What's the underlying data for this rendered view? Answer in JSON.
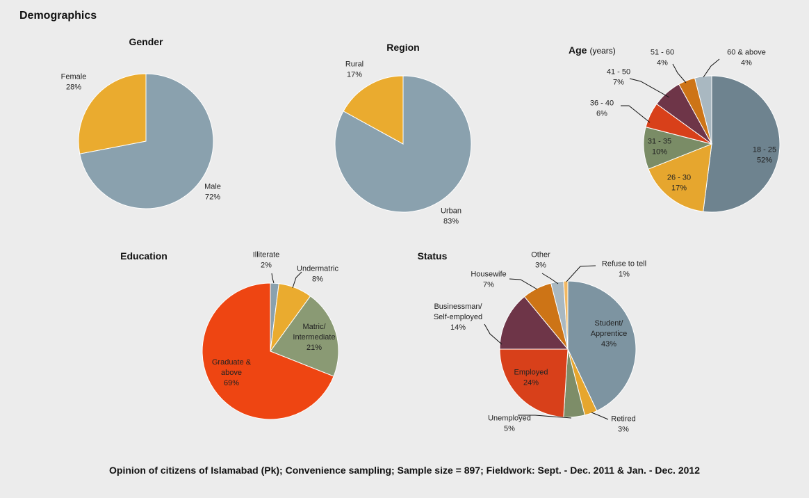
{
  "title": "Demographics",
  "footer": "Opinion of citizens of Islamabad (Pk); Convenience sampling; Sample size = 897; Fieldwork: Sept. - Dec. 2011 & Jan. - Dec. 2012",
  "chart_data": [
    {
      "type": "pie",
      "title": "Gender",
      "subtitle": "",
      "slices": [
        {
          "label": [
            "Male"
          ],
          "value": 72,
          "pct": "72%",
          "color": "#8aa1ae"
        },
        {
          "label": [
            "Female"
          ],
          "value": 28,
          "pct": "28%",
          "color": "#eaab2f"
        }
      ]
    },
    {
      "type": "pie",
      "title": "Region",
      "subtitle": "",
      "slices": [
        {
          "label": [
            "Urban"
          ],
          "value": 83,
          "pct": "83%",
          "color": "#8aa1ae"
        },
        {
          "label": [
            "Rural"
          ],
          "value": 17,
          "pct": "17%",
          "color": "#eaab2f"
        }
      ]
    },
    {
      "type": "pie",
      "title": "Age",
      "subtitle": "(years)",
      "slices": [
        {
          "label": [
            "18 - 25"
          ],
          "value": 52,
          "pct": "52%",
          "color": "#6e838f"
        },
        {
          "label": [
            "26 - 30"
          ],
          "value": 17,
          "pct": "17%",
          "color": "#e6a62e"
        },
        {
          "label": [
            "31 - 35"
          ],
          "value": 10,
          "pct": "10%",
          "color": "#7a8c66"
        },
        {
          "label": [
            "36 - 40"
          ],
          "value": 6,
          "pct": "6%",
          "color": "#d8401a"
        },
        {
          "label": [
            "41 - 50"
          ],
          "value": 7,
          "pct": "7%",
          "color": "#6e3548"
        },
        {
          "label": [
            "51 - 60"
          ],
          "value": 4,
          "pct": "4%",
          "color": "#cd7416"
        },
        {
          "label": [
            "60 & above"
          ],
          "value": 4,
          "pct": "4%",
          "color": "#a9b8c1"
        }
      ]
    },
    {
      "type": "pie",
      "title": "Education",
      "subtitle": "",
      "slices": [
        {
          "label": [
            "Illiterate"
          ],
          "value": 2,
          "pct": "2%",
          "color": "#8aa1ae"
        },
        {
          "label": [
            "Undermatric"
          ],
          "value": 8,
          "pct": "8%",
          "color": "#eaab2f"
        },
        {
          "label": [
            "Matric/",
            "Intermediate"
          ],
          "value": 21,
          "pct": "21%",
          "color": "#8a9a74"
        },
        {
          "label": [
            "Graduate &",
            "above"
          ],
          "value": 69,
          "pct": "69%",
          "color": "#ee4512"
        }
      ]
    },
    {
      "type": "pie",
      "title": "Status",
      "subtitle": "",
      "slices": [
        {
          "label": [
            "Student/",
            "Apprentice"
          ],
          "value": 43,
          "pct": "43%",
          "color": "#7d94a1"
        },
        {
          "label": [
            "Retired"
          ],
          "value": 3,
          "pct": "3%",
          "color": "#e6a62e"
        },
        {
          "label": [
            "Unemployed"
          ],
          "value": 5,
          "pct": "5%",
          "color": "#7d8d68"
        },
        {
          "label": [
            "Employed"
          ],
          "value": 24,
          "pct": "24%",
          "color": "#d8401a"
        },
        {
          "label": [
            "Businessman/",
            "Self-employed"
          ],
          "value": 14,
          "pct": "14%",
          "color": "#6e3548"
        },
        {
          "label": [
            "Housewife"
          ],
          "value": 7,
          "pct": "7%",
          "color": "#cd7416"
        },
        {
          "label": [
            "Other"
          ],
          "value": 3,
          "pct": "3%",
          "color": "#a9b8c1"
        },
        {
          "label": [
            "Refuse to tell"
          ],
          "value": 1,
          "pct": "1%",
          "color": "#f2b862"
        }
      ]
    }
  ]
}
